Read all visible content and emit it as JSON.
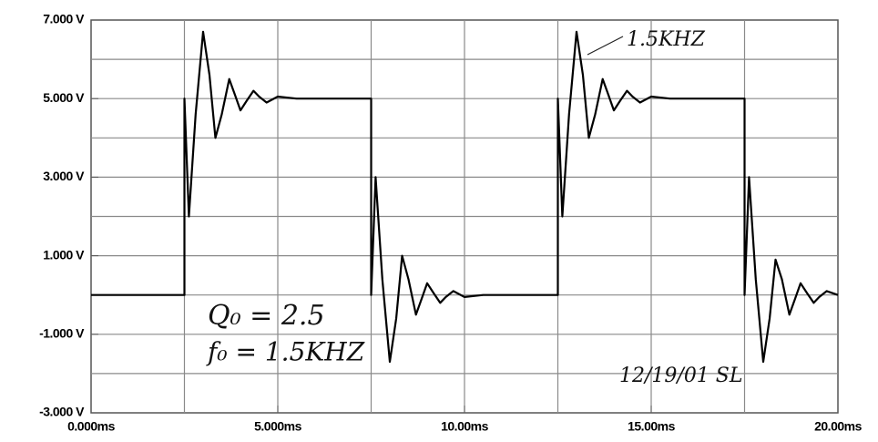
{
  "chart_data": {
    "type": "line",
    "x": [
      0,
      2.5,
      2.5,
      2.62,
      2.8,
      3.0,
      3.17,
      3.33,
      3.5,
      3.7,
      3.85,
      4.0,
      4.17,
      4.35,
      4.5,
      4.7,
      5.0,
      5.5,
      7.5,
      7.5,
      7.62,
      7.8,
      8.0,
      8.17,
      8.33,
      8.5,
      8.7,
      8.85,
      9.0,
      9.17,
      9.35,
      9.5,
      9.7,
      10.0,
      10.5,
      12.5,
      12.5,
      12.62,
      12.8,
      13.0,
      13.17,
      13.33,
      13.5,
      13.7,
      13.85,
      14.0,
      14.17,
      14.35,
      14.5,
      14.7,
      15.0,
      15.5,
      17.5,
      17.5,
      17.62,
      17.8,
      18.0,
      18.17,
      18.33,
      18.5,
      18.7,
      18.85,
      19.0,
      19.17,
      19.35,
      19.5,
      19.7,
      20.0
    ],
    "series": [
      {
        "color": "#000000",
        "values": [
          0,
          0,
          5,
          2.0,
          4.6,
          6.7,
          5.6,
          4.0,
          4.6,
          5.5,
          5.1,
          4.7,
          4.95,
          5.2,
          5.05,
          4.9,
          5.05,
          5.0,
          5.0,
          0,
          3.0,
          0.4,
          -1.7,
          -0.6,
          1.0,
          0.4,
          -0.5,
          -0.1,
          0.3,
          0.05,
          -0.2,
          -0.05,
          0.1,
          -0.05,
          0,
          0,
          5,
          2.0,
          4.6,
          6.7,
          5.6,
          4.0,
          4.6,
          5.5,
          5.1,
          4.7,
          4.95,
          5.2,
          5.05,
          4.9,
          5.05,
          5.0,
          5.0,
          0,
          3.0,
          0.4,
          -1.7,
          -0.6,
          0.9,
          0.4,
          -0.5,
          -0.1,
          0.3,
          0.05,
          -0.2,
          -0.05,
          0.1,
          0
        ]
      }
    ],
    "xlim": [
      0,
      20
    ],
    "ylim": [
      -3,
      7
    ],
    "xticks": [
      {
        "value": 0,
        "label": "0.000ms"
      },
      {
        "value": 5,
        "label": "5.000ms"
      },
      {
        "value": 10,
        "label": "10.00ms"
      },
      {
        "value": 15,
        "label": "15.00ms"
      },
      {
        "value": 20,
        "label": "20.00ms"
      }
    ],
    "yticks": [
      {
        "value": -3,
        "label": "-3.000 V"
      },
      {
        "value": -1,
        "label": "-1.000 V"
      },
      {
        "value": 1,
        "label": "1.000 V"
      },
      {
        "value": 3,
        "label": "3.000 V"
      },
      {
        "value": 5,
        "label": "5.000 V"
      },
      {
        "value": 7,
        "label": "7.000 V"
      }
    ],
    "xgrid": [
      2.5,
      5,
      7.5,
      10,
      12.5,
      15,
      17.5
    ],
    "ygrid": [
      -2,
      -1,
      0,
      1,
      2,
      3,
      4,
      5,
      6
    ],
    "grid": true,
    "annotations": [
      "1.5KHZ",
      "Q₀ = 2.5",
      "f₀ = 1.5KHZ",
      "12/19/01 SL"
    ]
  }
}
